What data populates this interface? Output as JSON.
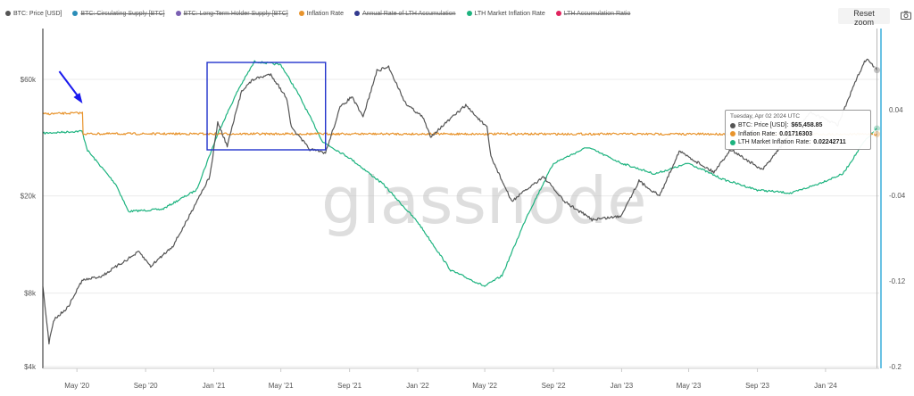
{
  "legend": [
    {
      "label": "BTC: Price [USD]",
      "color": "#555555",
      "active": true
    },
    {
      "label": "BTC: Circulating Supply [BTC]",
      "color": "#2a8db8",
      "active": false
    },
    {
      "label": "BTC: Long-Term Holder Supply [BTC]",
      "color": "#7a5fb2",
      "active": false
    },
    {
      "label": "Inflation Rate",
      "color": "#e8942d",
      "active": true
    },
    {
      "label": "Annual Rate of LTH Accumulation",
      "color": "#333a8f",
      "active": false
    },
    {
      "label": "LTH Market Inflation Rate",
      "color": "#1db37f",
      "active": true
    },
    {
      "label": "LTH Accumulation Ratio",
      "color": "#e0245e",
      "active": false
    }
  ],
  "toolbar": {
    "reset_zoom": "Reset zoom",
    "camera_icon": "camera-icon"
  },
  "watermark": "glassnode",
  "tooltip": {
    "title": "Tuesday, Apr 02 2024 UTC",
    "rows": [
      {
        "label": "BTC: Price [USD]:",
        "value": "$65,458.85",
        "color": "#555555"
      },
      {
        "label": "Inflation Rate:",
        "value": "0.01716303",
        "color": "#e8942d"
      },
      {
        "label": "LTH Market Inflation Rate:",
        "value": "0.02242711",
        "color": "#1db37f"
      }
    ]
  },
  "chart_data": {
    "type": "line",
    "x_ticks": [
      "May '20",
      "Sep '20",
      "Jan '21",
      "May '21",
      "Sep '21",
      "Jan '22",
      "May '22",
      "Sep '22",
      "Jan '23",
      "May '23",
      "Sep '23",
      "Jan '24"
    ],
    "y_left": {
      "scale": "log",
      "ticks": [
        "$60k",
        "$20k",
        "$8k",
        "$4k"
      ],
      "tick_values": [
        60000,
        20000,
        8000,
        4000
      ]
    },
    "y_right": {
      "ticks": [
        "0.04",
        "-0.04",
        "-0.12",
        "-0.2"
      ],
      "tick_values": [
        0.04,
        -0.04,
        -0.12,
        -0.2
      ]
    },
    "grid": "horizontal",
    "series": [
      {
        "name": "BTC: Price [USD]",
        "color": "#555555",
        "axis": "left",
        "points": [
          [
            "2020-03-01",
            8500
          ],
          [
            "2020-03-12",
            5000
          ],
          [
            "2020-03-20",
            6200
          ],
          [
            "2020-04-15",
            7000
          ],
          [
            "2020-05-10",
            9000
          ],
          [
            "2020-06-15",
            9400
          ],
          [
            "2020-07-25",
            10800
          ],
          [
            "2020-08-20",
            11800
          ],
          [
            "2020-09-10",
            10300
          ],
          [
            "2020-10-20",
            12500
          ],
          [
            "2020-11-15",
            16000
          ],
          [
            "2020-12-01",
            19000
          ],
          [
            "2020-12-25",
            24000
          ],
          [
            "2021-01-08",
            40000
          ],
          [
            "2021-01-25",
            32000
          ],
          [
            "2021-02-20",
            54000
          ],
          [
            "2021-03-13",
            60000
          ],
          [
            "2021-04-13",
            63000
          ],
          [
            "2021-05-12",
            50000
          ],
          [
            "2021-05-20",
            38000
          ],
          [
            "2021-06-22",
            31000
          ],
          [
            "2021-07-20",
            30000
          ],
          [
            "2021-08-15",
            46000
          ],
          [
            "2021-09-05",
            51000
          ],
          [
            "2021-09-25",
            42000
          ],
          [
            "2021-10-20",
            65000
          ],
          [
            "2021-11-10",
            67500
          ],
          [
            "2021-12-10",
            48000
          ],
          [
            "2022-01-10",
            42000
          ],
          [
            "2022-01-24",
            35000
          ],
          [
            "2022-03-28",
            47000
          ],
          [
            "2022-05-05",
            38000
          ],
          [
            "2022-05-12",
            29000
          ],
          [
            "2022-06-18",
            19000
          ],
          [
            "2022-08-14",
            24000
          ],
          [
            "2022-09-20",
            19000
          ],
          [
            "2022-11-09",
            16000
          ],
          [
            "2022-12-30",
            16500
          ],
          [
            "2023-02-01",
            23000
          ],
          [
            "2023-03-10",
            20000
          ],
          [
            "2023-04-14",
            30500
          ],
          [
            "2023-06-15",
            25000
          ],
          [
            "2023-07-15",
            31000
          ],
          [
            "2023-09-10",
            25500
          ],
          [
            "2023-10-25",
            34500
          ],
          [
            "2023-12-05",
            44000
          ],
          [
            "2024-01-23",
            39000
          ],
          [
            "2024-02-28",
            62000
          ],
          [
            "2024-03-14",
            73000
          ],
          [
            "2024-04-02",
            65458.85
          ]
        ]
      },
      {
        "name": "Inflation Rate",
        "color": "#e8942d",
        "axis": "right",
        "points": [
          [
            "2020-03-01",
            0.036
          ],
          [
            "2020-05-11",
            0.037
          ],
          [
            "2020-05-12",
            0.0175
          ],
          [
            "2024-04-02",
            0.01716303
          ]
        ]
      },
      {
        "name": "LTH Market Inflation Rate",
        "color": "#1db37f",
        "axis": "right",
        "points": [
          [
            "2020-03-01",
            0.018
          ],
          [
            "2020-05-10",
            0.02
          ],
          [
            "2020-05-20",
            0.002
          ],
          [
            "2020-07-10",
            -0.03
          ],
          [
            "2020-08-01",
            -0.055
          ],
          [
            "2020-10-01",
            -0.053
          ],
          [
            "2020-12-01",
            -0.035
          ],
          [
            "2021-01-10",
            0.02
          ],
          [
            "2021-02-15",
            0.06
          ],
          [
            "2021-03-15",
            0.085
          ],
          [
            "2021-05-01",
            0.082
          ],
          [
            "2021-06-01",
            0.055
          ],
          [
            "2021-07-15",
            0.01
          ],
          [
            "2021-09-01",
            -0.005
          ],
          [
            "2021-11-01",
            -0.03
          ],
          [
            "2022-01-01",
            -0.065
          ],
          [
            "2022-03-01",
            -0.11
          ],
          [
            "2022-05-01",
            -0.125
          ],
          [
            "2022-06-01",
            -0.115
          ],
          [
            "2022-07-15",
            -0.06
          ],
          [
            "2022-09-01",
            -0.01
          ],
          [
            "2022-11-01",
            0.005
          ],
          [
            "2023-01-01",
            -0.01
          ],
          [
            "2023-03-01",
            -0.02
          ],
          [
            "2023-05-01",
            -0.01
          ],
          [
            "2023-07-01",
            -0.025
          ],
          [
            "2023-09-01",
            -0.035
          ],
          [
            "2023-11-01",
            -0.038
          ],
          [
            "2023-12-15",
            -0.03
          ],
          [
            "2024-02-01",
            -0.02
          ],
          [
            "2024-03-10",
            0.01
          ],
          [
            "2024-04-02",
            0.02242711
          ]
        ]
      }
    ],
    "annotations": [
      {
        "type": "arrow",
        "color": "#1a1aee",
        "at": "2020-05-11"
      },
      {
        "type": "rect",
        "color": "#2233cc",
        "from": "2020-12-20",
        "to": "2021-07-20"
      }
    ]
  }
}
